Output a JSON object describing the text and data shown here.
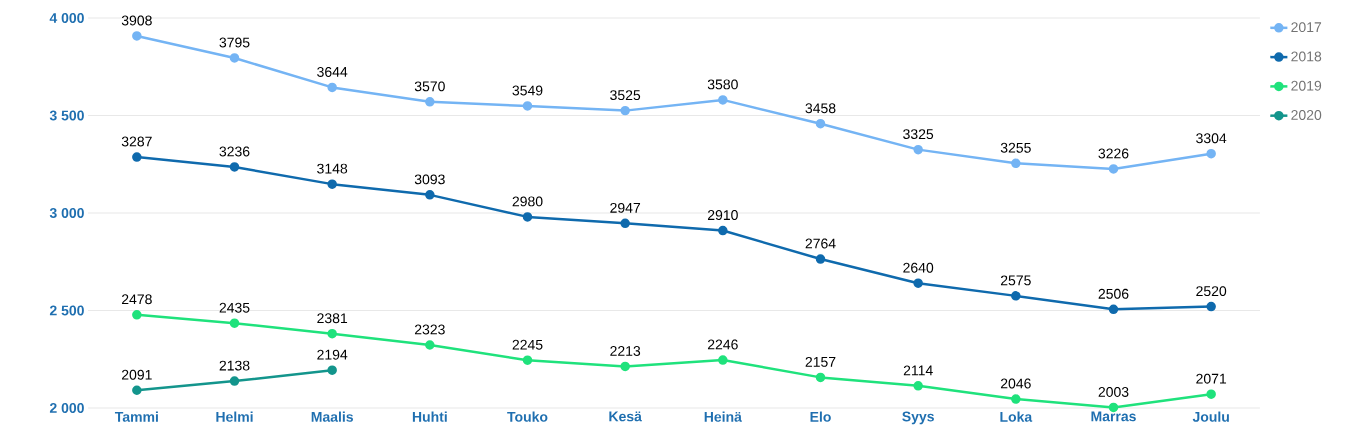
{
  "chart_data": {
    "type": "line",
    "categories": [
      "Tammi",
      "Helmi",
      "Maalis",
      "Huhti",
      "Touko",
      "Kesä",
      "Heinä",
      "Elo",
      "Syys",
      "Loka",
      "Marras",
      "Joulu"
    ],
    "series": [
      {
        "name": "2017",
        "color": "#74b4f4",
        "values": [
          3908,
          3795,
          3644,
          3570,
          3549,
          3525,
          3580,
          3458,
          3325,
          3255,
          3226,
          3304
        ]
      },
      {
        "name": "2018",
        "color": "#0f6aad",
        "values": [
          3287,
          3236,
          3148,
          3093,
          2980,
          2947,
          2910,
          2764,
          2640,
          2575,
          2506,
          2520
        ]
      },
      {
        "name": "2019",
        "color": "#1fe27c",
        "values": [
          2478,
          2435,
          2381,
          2323,
          2245,
          2213,
          2246,
          2157,
          2114,
          2046,
          2003,
          2071
        ]
      },
      {
        "name": "2020",
        "color": "#13958c",
        "values": [
          2091,
          2138,
          2194,
          null,
          null,
          null,
          null,
          null,
          null,
          null,
          null,
          null
        ]
      }
    ],
    "ylim": [
      2000,
      4000
    ],
    "yticks": [
      {
        "value": 2000,
        "label": "2 000"
      },
      {
        "value": 2500,
        "label": "2 500"
      },
      {
        "value": 3000,
        "label": "3 000"
      },
      {
        "value": 3500,
        "label": "3 500"
      },
      {
        "value": 4000,
        "label": "4 000"
      }
    ],
    "grid": "y",
    "legend": "right",
    "marker": "circle",
    "line_style": "solid",
    "data_labels": true
  }
}
